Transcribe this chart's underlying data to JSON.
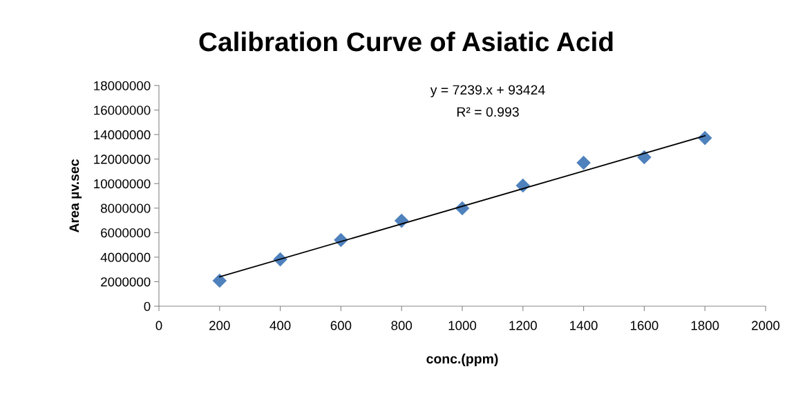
{
  "chart_data": {
    "type": "scatter",
    "title": "Calibration Curve of Asiatic Acid",
    "xlabel": "conc.(ppm)",
    "ylabel": "Area µv.sec",
    "x": [
      200,
      400,
      600,
      800,
      1000,
      1200,
      1400,
      1600,
      1800
    ],
    "series": [
      {
        "color": "#4f81bd",
        "marker": "diamond",
        "values": [
          2080000,
          3820000,
          5400000,
          6970000,
          7990000,
          9840000,
          11700000,
          12150000,
          13720000
        ]
      },
      {
        "type": "line",
        "color": "#000000",
        "marker": "none",
        "x": [
          200,
          1800
        ],
        "values": [
          2400000,
          13900000
        ]
      }
    ],
    "annotations": [
      "y = 7239.x + 93424",
      "R² = 0.993"
    ],
    "xlim": [
      0,
      2000
    ],
    "xticks": [
      0,
      200,
      400,
      600,
      800,
      1000,
      1200,
      1400,
      1600,
      1800,
      2000
    ],
    "ylim": [
      0,
      18000000
    ],
    "yticks": [
      0,
      2000000,
      4000000,
      6000000,
      8000000,
      10000000,
      12000000,
      14000000,
      16000000,
      18000000
    ],
    "grid": false,
    "legend": false
  }
}
